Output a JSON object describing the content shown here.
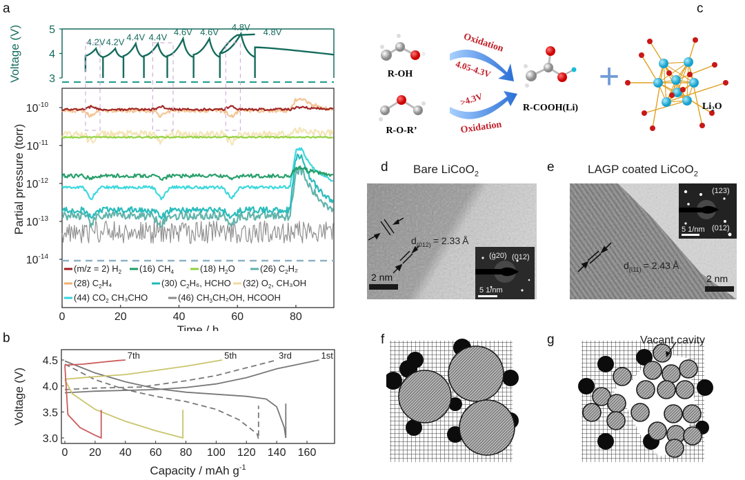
{
  "panel_labels": {
    "a": "a",
    "b": "b",
    "c": "c",
    "d": "d",
    "e": "e",
    "f": "f",
    "g": "g"
  },
  "chart_data": [
    {
      "id": "a-voltage",
      "type": "line",
      "ylabel": "Voltage (V)",
      "ylim": [
        3,
        5
      ],
      "yticks": [
        "5",
        "4",
        "3"
      ],
      "color": "#136b5c",
      "segments": [
        {
          "t0": 8,
          "t1": 14,
          "v0": 3.9,
          "vmax": 4.2,
          "label": "4.2V"
        },
        {
          "t0": 14,
          "t1": 21,
          "v0": 3.85,
          "vmax": 4.2,
          "label": "4.2V"
        },
        {
          "t0": 21,
          "t1": 28,
          "v0": 3.9,
          "vmax": 4.4,
          "label": "4.4V"
        },
        {
          "t0": 28,
          "t1": 36,
          "v0": 3.9,
          "vmax": 4.4,
          "label": "4.4V"
        },
        {
          "t0": 36,
          "t1": 45,
          "v0": 3.9,
          "vmax": 4.6,
          "label": "4.6V"
        },
        {
          "t0": 45,
          "t1": 54,
          "v0": 3.95,
          "vmax": 4.6,
          "label": "4.6V"
        },
        {
          "t0": 54,
          "t1": 66,
          "v0": 4.0,
          "vmax": 4.8,
          "label": "4.8V"
        },
        {
          "t0": 66,
          "t1": 93,
          "v0": 4.25,
          "vmax": 4.25,
          "label": ""
        }
      ],
      "highlight_windows_h": [
        [
          8,
          13
        ],
        [
          31,
          38
        ],
        [
          56,
          61
        ]
      ]
    },
    {
      "id": "a-pressure",
      "type": "line",
      "xlabel": "Time / h",
      "ylabel": "Partial pressure (torr)",
      "xlim": [
        0,
        93
      ],
      "xticks": [
        "0",
        "20",
        "40",
        "60",
        "80"
      ],
      "yscale": "log",
      "ylim_exp": [
        -14,
        -9.6
      ],
      "yticks": [
        {
          "base": "10",
          "exp": "-10"
        },
        {
          "base": "10",
          "exp": "-11"
        },
        {
          "base": "10",
          "exp": "-12"
        },
        {
          "base": "10",
          "exp": "-13"
        },
        {
          "base": "10",
          "exp": "-14"
        }
      ],
      "series": [
        {
          "name": "(m/z = 2) H2",
          "legend": "(m/z = 2) H",
          "sub": "2",
          "tail": "",
          "color": "#9b1c1c",
          "base_exp": -10.05,
          "noise": 0.03,
          "dip": 0.08,
          "surge": 0.06
        },
        {
          "name": "(16) CH4",
          "legend": "(16) CH",
          "sub": "4",
          "tail": "",
          "color": "#1e9a63",
          "base_exp": -11.8,
          "noise": 0.05,
          "dip": -0.08,
          "surge": 0.2
        },
        {
          "name": "(18) H2O",
          "legend": "(18) H",
          "sub": "2",
          "tail": "O",
          "color": "#8fd13b",
          "base_exp": -10.78,
          "noise": 0.02,
          "dip": 0,
          "surge": 0
        },
        {
          "name": "(26) C2H2",
          "legend": "(26) C",
          "sub": "2",
          "tail": "H₂",
          "color": "#5ab0a8",
          "base_exp": -12.85,
          "noise": 0.12,
          "dip": -0.2,
          "surge": 1.2
        },
        {
          "name": "(28) C2H4",
          "legend": "(28) C",
          "sub": "2",
          "tail": "H₄",
          "color": "#f0b070",
          "base_exp": -10.08,
          "noise": 0.05,
          "dip": -0.15,
          "surge": 0.3
        },
        {
          "name": "(30) C2H6, HCHO",
          "legend": "(30) C",
          "sub": "2",
          "tail": "H₆, HCHO",
          "color": "#20b8b8",
          "base_exp": -12.7,
          "noise": 0.08,
          "dip": -0.2,
          "surge": 1.4
        },
        {
          "name": "(32) O2, CH3OH",
          "legend": "(32) O",
          "sub": "2",
          "tail": ", CH₃OH",
          "color": "#f0dca0",
          "base_exp": -10.7,
          "noise": 0.1,
          "dip": -0.2,
          "surge": 0.1
        },
        {
          "name": "(44) CO2 CH3CHO",
          "legend": "(44) CO",
          "sub": "2",
          "tail": " CH₃CHO",
          "color": "#33d6dc",
          "base_exp": -12.1,
          "noise": 0.04,
          "dip": -0.3,
          "surge": 1.0
        },
        {
          "name": "(46) CH3CH2OH, HCOOH",
          "legend": "(46) CH",
          "sub": "3",
          "tail": "CH₂OH, HCOOH",
          "color": "#8a8a8a",
          "base_exp": -13.4,
          "noise": 0.3,
          "dip": 0,
          "surge": 0.4
        }
      ],
      "surge_start_h": 78
    },
    {
      "id": "b",
      "type": "line",
      "xlabel": "Capacity / mAh g",
      "xlabel_sup": "-1",
      "ylabel": "Voltage (V)",
      "xlim": [
        -3,
        178
      ],
      "ylim": [
        2.92,
        4.68
      ],
      "xticks": [
        "0",
        "20",
        "40",
        "60",
        "80",
        "100",
        "120",
        "140",
        "160"
      ],
      "yticks": [
        "4.5",
        "4.0",
        "3.5",
        "3.0"
      ],
      "series": [
        {
          "name": "1st",
          "label": "1st",
          "color": "#777777",
          "dash": false,
          "charge": [
            [
              0,
              3.87
            ],
            [
              20,
              3.9
            ],
            [
              60,
              3.93
            ],
            [
              80,
              3.97
            ],
            [
              100,
              4.04
            ],
            [
              120,
              4.16
            ],
            [
              140,
              4.33
            ],
            [
              168,
              4.5
            ]
          ],
          "discharge": [
            [
              0,
              4.48
            ],
            [
              20,
              4.25
            ],
            [
              40,
              4.08
            ],
            [
              60,
              3.95
            ],
            [
              80,
              3.88
            ],
            [
              100,
              3.84
            ],
            [
              120,
              3.8
            ],
            [
              133,
              3.75
            ],
            [
              140,
              3.6
            ],
            [
              145,
              3.2
            ],
            [
              146,
              3.0
            ],
            [
              146,
              3.66
            ]
          ]
        },
        {
          "name": "3rd",
          "label": "3rd",
          "color": "#777777",
          "dash": true,
          "charge": [
            [
              0,
              3.93
            ],
            [
              20,
              3.96
            ],
            [
              50,
              3.98
            ],
            [
              80,
              4.1
            ],
            [
              100,
              4.2
            ],
            [
              120,
              4.35
            ],
            [
              140,
              4.5
            ]
          ],
          "discharge": [
            [
              0,
              4.42
            ],
            [
              20,
              4.12
            ],
            [
              40,
              3.93
            ],
            [
              60,
              3.8
            ],
            [
              80,
              3.7
            ],
            [
              100,
              3.55
            ],
            [
              115,
              3.35
            ],
            [
              127,
              3.08
            ],
            [
              128,
              2.98
            ],
            [
              128,
              3.62
            ]
          ]
        },
        {
          "name": "5th",
          "label": "5th",
          "color": "#c9c46a",
          "dash": false,
          "charge": [
            [
              0,
              4.13
            ],
            [
              20,
              4.18
            ],
            [
              40,
              4.22
            ],
            [
              60,
              4.3
            ],
            [
              80,
              4.38
            ],
            [
              104,
              4.5
            ]
          ],
          "discharge": [
            [
              0,
              4.12
            ],
            [
              5,
              3.85
            ],
            [
              20,
              3.55
            ],
            [
              40,
              3.32
            ],
            [
              60,
              3.14
            ],
            [
              78,
              3.0
            ],
            [
              78,
              3.54
            ]
          ]
        },
        {
          "name": "7th",
          "label": "7th",
          "color": "#cc5a5a",
          "dash": false,
          "charge": [
            [
              0,
              4.4
            ],
            [
              12,
              4.42
            ],
            [
              25,
              4.46
            ],
            [
              35,
              4.49
            ],
            [
              40,
              4.5
            ]
          ],
          "discharge": [
            [
              0,
              4.4
            ],
            [
              2,
              3.45
            ],
            [
              10,
              3.2
            ],
            [
              20,
              3.05
            ],
            [
              24,
              3.0
            ],
            [
              24,
              3.54
            ]
          ]
        }
      ]
    }
  ],
  "panel_c": {
    "reactant1": "R-OH",
    "reactant2": "R-O-R’",
    "arrow1_top": "Oxidation",
    "arrow1_bottom": "4.05-4.3V",
    "arrow2_top": ">4.3V",
    "arrow2_bottom": "Oxidation",
    "product": "R-COOH(Li)",
    "plus": "+",
    "li2o_label": "Li",
    "li2o_sub": "2",
    "li2o_tail": "O"
  },
  "panel_d": {
    "title": "Bare LiCoO",
    "title_sub": "2",
    "d_label": "d",
    "d_sub": "(012)",
    "d_value": "= 2.33",
    "angstrom": "Å",
    "scale_bar": "2 nm",
    "inset_spot1": "(ġ20)",
    "inset_spot2": "(012)",
    "inset_scale": "5 1/nm"
  },
  "panel_e": {
    "title": "LAGP coated LiCoO",
    "title_sub": "2",
    "d_label": "d",
    "d_sub": "(ī11)",
    "d_value": "= 2.43",
    "angstrom": "Å",
    "scale_bar": "2 nm",
    "inset_spot1": "(123)",
    "inset_spot2": "(012)",
    "inset_scale": "5 1/nm"
  },
  "panel_g": {
    "annotation": "Vacant cavity"
  }
}
